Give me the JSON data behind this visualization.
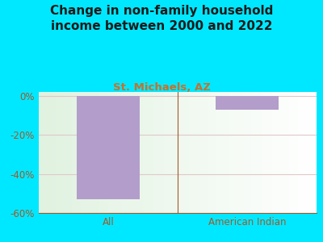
{
  "title": "Change in non-family household\nincome between 2000 and 2022",
  "subtitle": "St. Michaels, AZ",
  "categories": [
    "All",
    "American Indian"
  ],
  "values": [
    -53.0,
    -7.0
  ],
  "bar_color": "#b39dca",
  "background_color": "#00e8ff",
  "plot_bg_color": "#e8f5e2",
  "title_color": "#1a1a1a",
  "subtitle_color": "#c8702a",
  "tick_color": "#a05a2c",
  "grid_color": "#e0c8c8",
  "ylim": [
    -60,
    2
  ],
  "yticks": [
    0,
    -20,
    -40,
    -60
  ],
  "ytick_labels": [
    "0%",
    "-20%",
    "-40%",
    "-60%"
  ],
  "title_fontsize": 11,
  "subtitle_fontsize": 9.5,
  "tick_fontsize": 8.5
}
